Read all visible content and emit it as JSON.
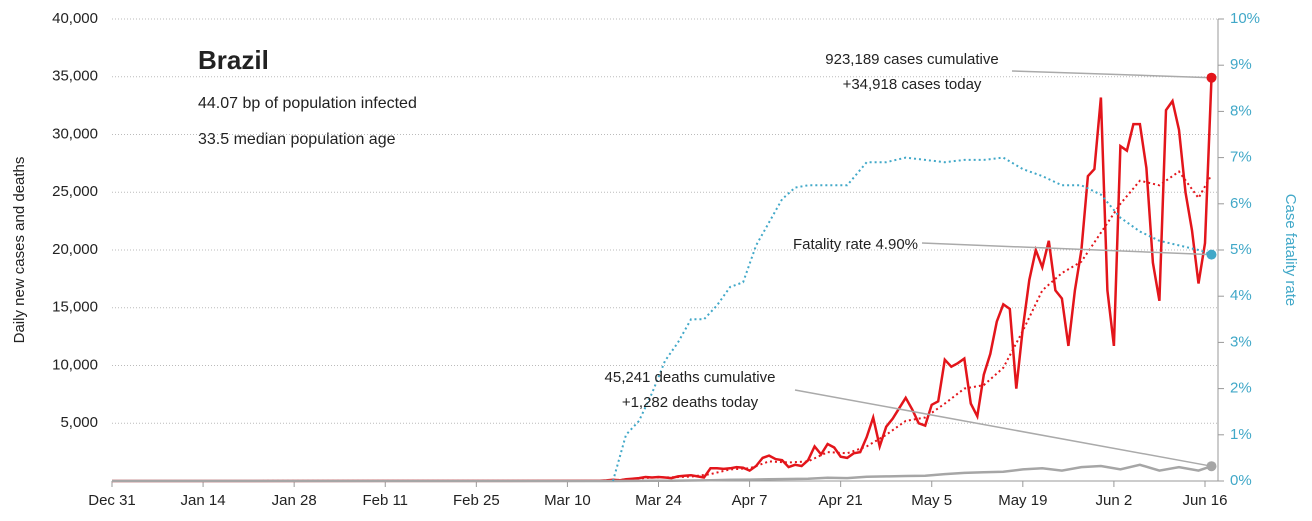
{
  "chart_data": {
    "type": "line",
    "title": "Brazil",
    "notes": [
      "44.07 bp of population infected",
      "33.5 median population age"
    ],
    "ylabel": "Daily new cases and deaths",
    "y2label": "Case fatality rate",
    "xlim": [
      0,
      170
    ],
    "xticks": [
      {
        "value": 0,
        "label": "Dec 31"
      },
      {
        "value": 14,
        "label": "Jan 14"
      },
      {
        "value": 28,
        "label": "Jan 28"
      },
      {
        "value": 42,
        "label": "Feb 11"
      },
      {
        "value": 56,
        "label": "Feb 25"
      },
      {
        "value": 70,
        "label": "Mar 10"
      },
      {
        "value": 84,
        "label": "Mar 24"
      },
      {
        "value": 98,
        "label": "Apr 7"
      },
      {
        "value": 112,
        "label": "Apr 21"
      },
      {
        "value": 126,
        "label": "May 5"
      },
      {
        "value": 140,
        "label": "May 19"
      },
      {
        "value": 154,
        "label": "Jun 2"
      },
      {
        "value": 168,
        "label": "Jun 16"
      }
    ],
    "ylim": [
      0,
      40000
    ],
    "yticks": [
      {
        "value": 5000,
        "label": "5,000"
      },
      {
        "value": 10000,
        "label": "10,000"
      },
      {
        "value": 15000,
        "label": "15,000"
      },
      {
        "value": 20000,
        "label": "20,000"
      },
      {
        "value": 25000,
        "label": "25,000"
      },
      {
        "value": 30000,
        "label": "30,000"
      },
      {
        "value": 35000,
        "label": "35,000"
      },
      {
        "value": 40000,
        "label": "40,000"
      }
    ],
    "y2lim": [
      0,
      10
    ],
    "y2ticks": [
      {
        "value": 0,
        "label": "0%"
      },
      {
        "value": 1,
        "label": "1%"
      },
      {
        "value": 2,
        "label": "2%"
      },
      {
        "value": 3,
        "label": "3%"
      },
      {
        "value": 4,
        "label": "4%"
      },
      {
        "value": 5,
        "label": "5%"
      },
      {
        "value": 6,
        "label": "6%"
      },
      {
        "value": 7,
        "label": "7%"
      },
      {
        "value": 8,
        "label": "8%"
      },
      {
        "value": 9,
        "label": "9%"
      },
      {
        "value": 10,
        "label": "10%"
      }
    ],
    "grid": true,
    "series": [
      {
        "color": "#e3151b",
        "style": "solid",
        "x": [
          0,
          74,
          75,
          76,
          77,
          78,
          79,
          80,
          81,
          82,
          83,
          84,
          85,
          86,
          87,
          88,
          89,
          90,
          91,
          92,
          93,
          94,
          95,
          96,
          97,
          98,
          99,
          100,
          101,
          102,
          103,
          104,
          105,
          106,
          107,
          108,
          109,
          110,
          111,
          112,
          113,
          114,
          115,
          116,
          117,
          118,
          119,
          120,
          121,
          122,
          123,
          124,
          125,
          126,
          127,
          128,
          129,
          130,
          131,
          132,
          133,
          134,
          135,
          136,
          137,
          138,
          139,
          140,
          141,
          142,
          143,
          144,
          145,
          146,
          147,
          148,
          149,
          150,
          151,
          152,
          153,
          154,
          155,
          156,
          157,
          158,
          159,
          160,
          161,
          162,
          163,
          164,
          165,
          166,
          167,
          168,
          169
        ],
        "values": [
          0,
          20,
          30,
          50,
          100,
          60,
          150,
          200,
          250,
          350,
          300,
          350,
          300,
          250,
          400,
          450,
          500,
          400,
          300,
          1100,
          1100,
          1050,
          1100,
          1200,
          1150,
          900,
          1300,
          2000,
          2200,
          1900,
          1800,
          1200,
          1400,
          1300,
          1800,
          3000,
          2300,
          3200,
          2900,
          2100,
          2000,
          2400,
          2500,
          3800,
          5500,
          3000,
          4700,
          5400,
          6300,
          7200,
          6200,
          5000,
          4800,
          6600,
          6900,
          10500,
          9900,
          10200,
          10600,
          6700,
          5600,
          9200,
          11000,
          13800,
          15300,
          14900,
          8000,
          13200,
          17400,
          20000,
          18500,
          20800,
          16500,
          15800,
          11700,
          16500,
          20000,
          26400,
          27000,
          33200,
          16500,
          11700,
          29000,
          28600,
          30900,
          30900,
          27100,
          18900,
          15600,
          32100,
          32900,
          30400,
          25000,
          21700,
          17100,
          20600,
          34918
        ]
      },
      {
        "color": "#e3151b",
        "style": "dotted",
        "x": [
          0,
          74,
          77,
          80,
          83,
          86,
          89,
          92,
          95,
          98,
          101,
          104,
          107,
          110,
          113,
          116,
          119,
          122,
          125,
          128,
          131,
          134,
          137,
          140,
          143,
          146,
          149,
          152,
          155,
          158,
          161,
          164,
          167,
          169
        ],
        "values": [
          0,
          20,
          60,
          180,
          300,
          320,
          380,
          600,
          1000,
          1100,
          1700,
          1600,
          1700,
          2500,
          2400,
          3000,
          4000,
          5200,
          5500,
          6700,
          8000,
          8300,
          9800,
          13000,
          16500,
          18000,
          19000,
          21500,
          24000,
          26000,
          25600,
          26800,
          24500,
          26500
        ]
      },
      {
        "color": "#a6a6a6",
        "style": "solid",
        "x": [
          0,
          74,
          77,
          80,
          83,
          86,
          89,
          92,
          95,
          98,
          101,
          104,
          107,
          110,
          113,
          116,
          119,
          122,
          125,
          128,
          131,
          134,
          137,
          140,
          143,
          146,
          149,
          152,
          155,
          158,
          161,
          164,
          167,
          169
        ],
        "values": [
          0,
          0,
          0,
          5,
          20,
          30,
          45,
          70,
          100,
          120,
          150,
          170,
          200,
          280,
          250,
          370,
          400,
          430,
          450,
          600,
          700,
          750,
          800,
          1000,
          1100,
          900,
          1200,
          1300,
          1000,
          1400,
          900,
          1200,
          900,
          1282
        ]
      },
      {
        "color": "#41a8c8",
        "style": "dotted",
        "axis": "y2",
        "x": [
          77,
          79,
          81,
          83,
          85,
          87,
          89,
          91,
          93,
          95,
          97,
          99,
          101,
          103,
          105,
          107,
          110,
          113,
          116,
          119,
          122,
          125,
          128,
          131,
          134,
          137,
          140,
          143,
          146,
          149,
          152,
          155,
          158,
          161,
          164,
          167,
          169
        ],
        "values": [
          0,
          1.0,
          1.3,
          1.9,
          2.6,
          3.0,
          3.5,
          3.5,
          3.8,
          4.2,
          4.3,
          5.1,
          5.6,
          6.1,
          6.35,
          6.4,
          6.4,
          6.4,
          6.9,
          6.9,
          7.0,
          6.95,
          6.9,
          6.95,
          6.95,
          7.0,
          6.75,
          6.6,
          6.4,
          6.4,
          6.2,
          5.7,
          5.4,
          5.2,
          5.1,
          5.0,
          4.9
        ]
      }
    ],
    "annotations": [
      [
        "923,189 cases cumulative",
        "+34,918 cases today"
      ],
      [
        "Fatality rate 4.90%"
      ],
      [
        "45,241 deaths cumulative",
        "+1,282 deaths today"
      ]
    ]
  }
}
